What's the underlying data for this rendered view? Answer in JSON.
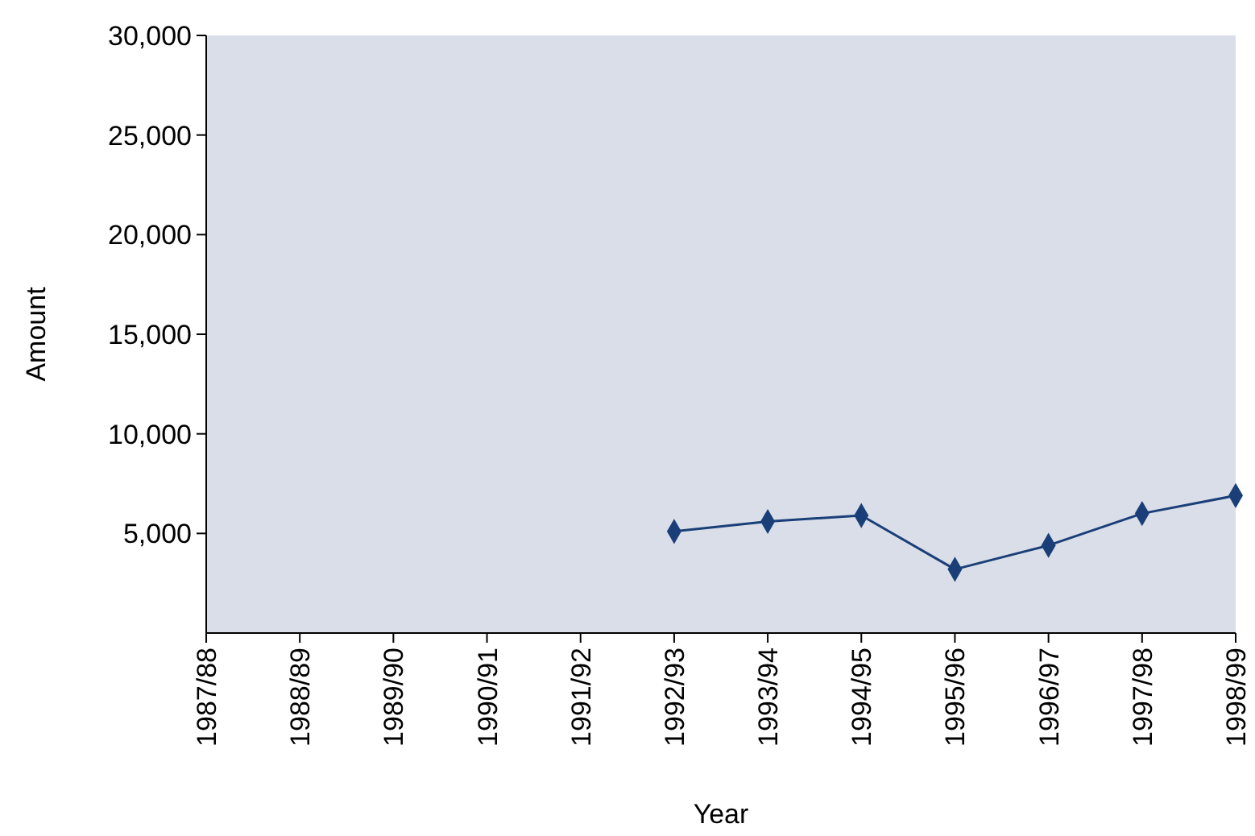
{
  "chart_data": {
    "type": "line",
    "xlabel": "Year",
    "ylabel": "Amount",
    "categories": [
      "1987/88",
      "1988/89",
      "1989/90",
      "1990/91",
      "1991/92",
      "1992/93",
      "1993/94",
      "1994/95",
      "1995/96",
      "1996/97",
      "1997/98",
      "1998/99"
    ],
    "series": [
      {
        "color": "#1a3f78",
        "values": [
          null,
          null,
          null,
          null,
          null,
          5100,
          5600,
          5900,
          3200,
          4400,
          6000,
          6900
        ]
      }
    ],
    "ylim": [
      0,
      30000
    ],
    "yticks": [
      {
        "value": 5000,
        "label": "5,000"
      },
      {
        "value": 10000,
        "label": "10,000"
      },
      {
        "value": 15000,
        "label": "15,000"
      },
      {
        "value": 20000,
        "label": "20,000"
      },
      {
        "value": 25000,
        "label": "25,000"
      },
      {
        "value": 30000,
        "label": "30,000"
      }
    ],
    "marker": "diamond",
    "line_style": "solid"
  }
}
